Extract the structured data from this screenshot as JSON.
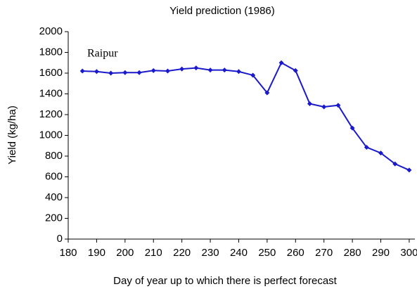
{
  "chart_data": {
    "type": "line",
    "title": "Yield prediction (1986)",
    "xlabel": "Day of year up to which there is perfect forecast",
    "ylabel": "Yield  (kg/ha)",
    "annotation": "Raipur",
    "x": [
      185,
      190,
      195,
      200,
      205,
      210,
      215,
      220,
      225,
      230,
      235,
      240,
      245,
      250,
      255,
      260,
      265,
      270,
      275,
      280,
      285,
      290,
      295,
      300
    ],
    "series": [
      {
        "name": "Raipur",
        "color": "#1a1acc",
        "values": [
          1620,
          1615,
          1600,
          1605,
          1605,
          1625,
          1620,
          1640,
          1650,
          1630,
          1630,
          1615,
          1580,
          1410,
          1700,
          1625,
          1305,
          1275,
          1290,
          1070,
          885,
          830,
          725,
          665
        ]
      }
    ],
    "xlim": [
      180,
      302
    ],
    "xticks": [
      180,
      190,
      200,
      210,
      220,
      230,
      240,
      250,
      260,
      270,
      280,
      290,
      300
    ],
    "ylim": [
      0,
      2000
    ],
    "yticks": [
      0,
      200,
      400,
      600,
      800,
      1000,
      1200,
      1400,
      1600,
      1800,
      2000
    ],
    "grid": false
  }
}
